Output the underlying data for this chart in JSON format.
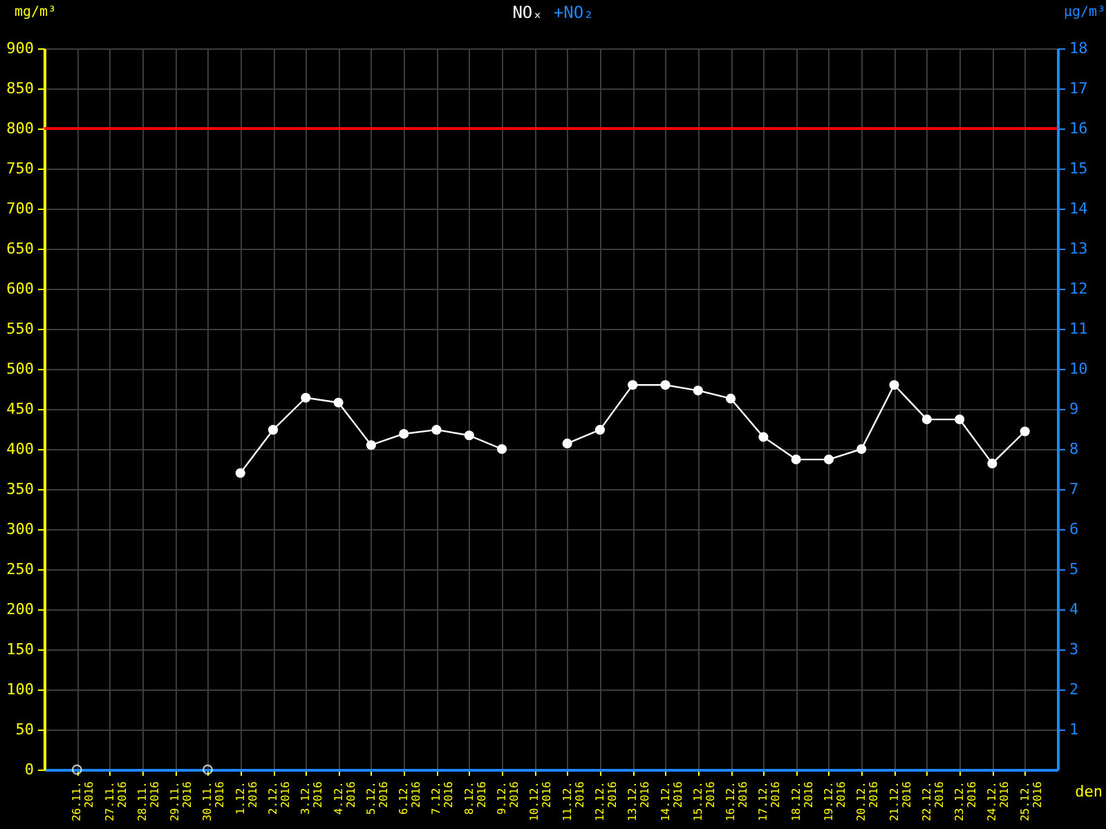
{
  "chart_data": {
    "type": "line",
    "title": "NOₓ",
    "subtitle": "+NO₂",
    "xlabel": "den",
    "ylabel": "mg/m³",
    "y2label": "µg/m³",
    "categories": [
      "26.11. 2016",
      "27.11. 2016",
      "28.11. 2016",
      "29.11. 2016",
      "30.11. 2016",
      "1.12. 2016",
      "2.12. 2016",
      "3.12. 2016",
      "4.12. 2016",
      "5.12. 2016",
      "6.12. 2016",
      "7.12. 2016",
      "8.12. 2016",
      "9.12. 2016",
      "10.12. 2016",
      "11.12. 2016",
      "12.12. 2016",
      "13.12. 2016",
      "14.12. 2016",
      "15.12. 2016",
      "16.12. 2016",
      "17.12. 2016",
      "18.12. 2016",
      "19.12. 2016",
      "20.12. 2016",
      "21.12. 2016",
      "22.12. 2016",
      "23.12. 2016",
      "24.12. 2016",
      "25.12. 2016"
    ],
    "series": [
      {
        "color": "#ffffff",
        "marker": "circle",
        "values": [
          null,
          null,
          null,
          null,
          null,
          370,
          424,
          464,
          458,
          405,
          419,
          424,
          417,
          400,
          null,
          407,
          424,
          480,
          480,
          473,
          463,
          415,
          387,
          387,
          400,
          480,
          437,
          437,
          382,
          422
        ]
      },
      {
        "type": "scatter",
        "color": "#ffffff",
        "marker": "circle",
        "x": [
          "26.11. 2016",
          "30.11. 2016"
        ],
        "values": [
          0,
          0
        ]
      }
    ],
    "ylim": [
      0,
      900
    ],
    "yticks": [
      0,
      50,
      100,
      150,
      200,
      250,
      300,
      350,
      400,
      450,
      500,
      550,
      600,
      650,
      700,
      750,
      800,
      850,
      900
    ],
    "y2lim": [
      0,
      18
    ],
    "y2ticks": [
      1,
      2,
      3,
      4,
      5,
      6,
      7,
      8,
      9,
      10,
      11,
      12,
      13,
      14,
      15,
      16,
      17,
      18
    ],
    "ref_lines": [
      {
        "axis": "y",
        "value": 800,
        "color": "#ff0000"
      }
    ],
    "grid": true
  }
}
